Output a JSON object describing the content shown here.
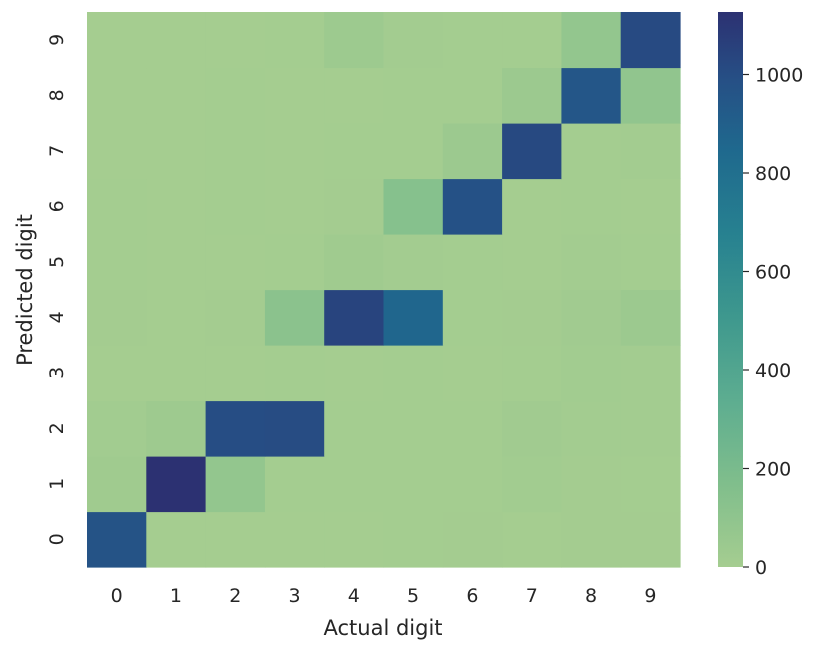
{
  "chart_data": {
    "type": "heatmap",
    "xlabel": "Actual digit",
    "ylabel": "Predicted digit",
    "x_categories": [
      "0",
      "1",
      "2",
      "3",
      "4",
      "5",
      "6",
      "7",
      "8",
      "9"
    ],
    "y_categories": [
      "0",
      "1",
      "2",
      "3",
      "4",
      "5",
      "6",
      "7",
      "8",
      "9"
    ],
    "y_order": "bottom-to-top",
    "cells": [
      [
        970,
        0,
        2,
        1,
        1,
        3,
        6,
        2,
        6,
        6
      ],
      [
        25,
        1127,
        80,
        5,
        3,
        3,
        3,
        12,
        6,
        4
      ],
      [
        15,
        30,
        1000,
        1005,
        3,
        3,
        4,
        20,
        10,
        8
      ],
      [
        2,
        2,
        2,
        3,
        0,
        4,
        0,
        4,
        12,
        10
      ],
      [
        6,
        1,
        6,
        120,
        1040,
        860,
        4,
        6,
        20,
        40
      ],
      [
        3,
        2,
        2,
        4,
        25,
        10,
        5,
        2,
        7,
        5
      ],
      [
        4,
        2,
        3,
        1,
        6,
        140,
        980,
        0,
        5,
        1
      ],
      [
        1,
        2,
        3,
        2,
        3,
        3,
        40,
        1020,
        3,
        8
      ],
      [
        2,
        1,
        4,
        2,
        2,
        4,
        3,
        40,
        950,
        90
      ],
      [
        2,
        0,
        0,
        3,
        35,
        8,
        4,
        5,
        80,
        1015
      ]
    ],
    "colorbar": {
      "colormap": "crest",
      "range": [
        0,
        1127
      ],
      "ticks": [
        "0",
        "200",
        "400",
        "600",
        "800",
        "1000"
      ],
      "tick_values": [
        0,
        200,
        400,
        600,
        800,
        1000
      ]
    },
    "grid": false,
    "colors": {
      "low": "#a5cd90",
      "high": "#2c3172",
      "text": "#262626",
      "background": "#ffffff"
    }
  }
}
